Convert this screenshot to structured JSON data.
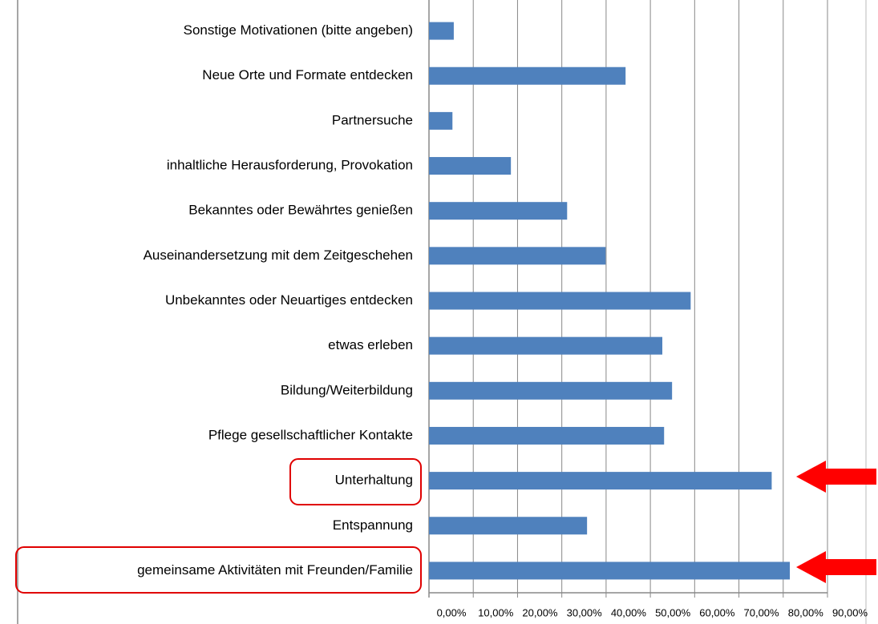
{
  "chart_data": {
    "type": "bar",
    "orientation": "horizontal",
    "categories": [
      "Sonstige Motivationen (bitte angeben)",
      "Neue Orte und Formate entdecken",
      "Partnersuche",
      "inhaltliche Herausforderung, Provokation",
      "Bekanntes oder Bewährtes genießen",
      "Auseinandersetzung mit dem Zeitgeschehen",
      "Unbekanntes oder Neuartiges entdecken",
      "etwas erleben",
      "Bildung/Weiterbildung",
      "Pflege gesellschaftlicher Kontakte",
      "Unterhaltung",
      "Entspannung",
      "gemeinsame Aktivitäten mit Freunden/Familie"
    ],
    "values": [
      5.6,
      44.4,
      5.3,
      18.5,
      31.2,
      39.9,
      59.1,
      52.7,
      54.9,
      53.1,
      77.4,
      35.7,
      81.5
    ],
    "color": "#4f81bd",
    "xlim": [
      0,
      90
    ],
    "xticks": [
      {
        "value": 0,
        "label": "0,00%"
      },
      {
        "value": 10,
        "label": "10,00%"
      },
      {
        "value": 20,
        "label": "20,00%"
      },
      {
        "value": 30,
        "label": "30,00%"
      },
      {
        "value": 40,
        "label": "40,00%"
      },
      {
        "value": 50,
        "label": "50,00%"
      },
      {
        "value": 60,
        "label": "60,00%"
      },
      {
        "value": 70,
        "label": "70,00%"
      },
      {
        "value": 80,
        "label": "80,00%"
      },
      {
        "value": 90,
        "label": "90,00%"
      }
    ],
    "grid": true
  }
}
